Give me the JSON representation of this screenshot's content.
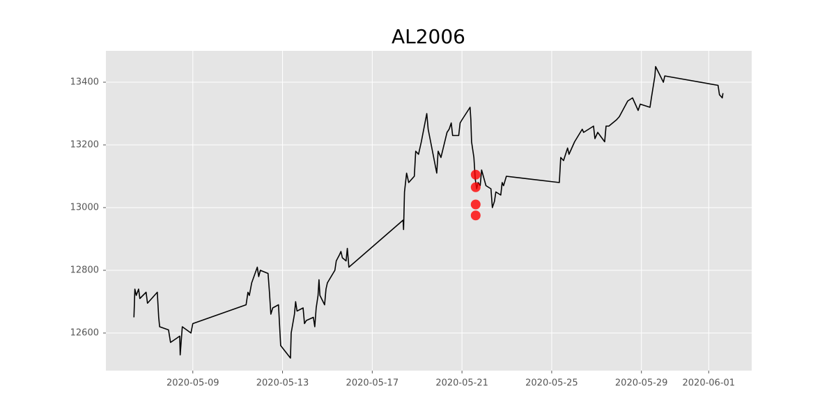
{
  "chart_data": {
    "type": "line",
    "title": "AL2006",
    "xlim": [
      "2020-05-05 03:00",
      "2020-06-02 22:00"
    ],
    "xticks": [
      "2020-05-09",
      "2020-05-13",
      "2020-05-17",
      "2020-05-21",
      "2020-05-25",
      "2020-05-29",
      "2020-06-01"
    ],
    "ylim": [
      12480,
      13500
    ],
    "yticks": [
      12600,
      12800,
      13000,
      13200,
      13400
    ],
    "grid": true,
    "series": [
      {
        "type": "line",
        "color": "#000000",
        "x": [
          "2020-05-06 09:00",
          "2020-05-06 10:00",
          "2020-05-06 11:30",
          "2020-05-06 14:00",
          "2020-05-06 15:20",
          "2020-05-06 22:00",
          "2020-05-06 23:30",
          "2020-05-07 10:00",
          "2020-05-07 11:30",
          "2020-05-07 12:30",
          "2020-05-07 22:00",
          "2020-05-08 00:10",
          "2020-05-08 10:00",
          "2020-05-08 10:30",
          "2020-05-08 12:45",
          "2020-05-08 22:00",
          "2020-05-09 00:00",
          "2020-05-11 09:00",
          "2020-05-11 11:00",
          "2020-05-11 12:30",
          "2020-05-11 15:00",
          "2020-05-11 21:00",
          "2020-05-11 22:30",
          "2020-05-12 00:15",
          "2020-05-12 08:30",
          "2020-05-12 10:00",
          "2020-05-12 11:30",
          "2020-05-12 13:30",
          "2020-05-12 19:40",
          "2020-05-12 22:00",
          "2020-05-13 08:30",
          "2020-05-13 09:15",
          "2020-05-13 12:45",
          "2020-05-13 14:00",
          "2020-05-13 15:30",
          "2020-05-13 22:00",
          "2020-05-13 23:30",
          "2020-05-14 01:30",
          "2020-05-14 09:00",
          "2020-05-14 10:30",
          "2020-05-14 12:00",
          "2020-05-14 14:00",
          "2020-05-14 15:00",
          "2020-05-14 16:00",
          "2020-05-14 21:00",
          "2020-05-14 22:30",
          "2020-05-15 00:00",
          "2020-05-15 08:00",
          "2020-05-15 09:30",
          "2020-05-15 13:00",
          "2020-05-15 14:30",
          "2020-05-15 16:00",
          "2020-05-15 20:00",
          "2020-05-15 21:20",
          "2020-05-15 23:00",
          "2020-05-18 09:00",
          "2020-05-18 09:30",
          "2020-05-18 10:30",
          "2020-05-18 12:45",
          "2020-05-18 15:00",
          "2020-05-18 21:00",
          "2020-05-18 22:30",
          "2020-05-19 01:30",
          "2020-05-19 04:30",
          "2020-05-19 10:20",
          "2020-05-19 11:50",
          "2020-05-19 21:00",
          "2020-05-19 22:30",
          "2020-05-20 01:30",
          "2020-05-20 08:00",
          "2020-05-20 10:15",
          "2020-05-20 12:30",
          "2020-05-20 14:00",
          "2020-05-20 20:30",
          "2020-05-20 22:00",
          "2020-05-21 00:00",
          "2020-05-21 08:40",
          "2020-05-21 09:30",
          "2020-05-21 10:15",
          "2020-05-21 12:45",
          "2020-05-21 14:15",
          "2020-05-21 15:45",
          "2020-05-21 17:15",
          "2020-05-21 19:30",
          "2020-05-21 21:00",
          "2020-05-22 01:40",
          "2020-05-22 07:00",
          "2020-05-22 08:30",
          "2020-05-22 10:45",
          "2020-05-22 12:15",
          "2020-05-22 17:30",
          "2020-05-22 19:00",
          "2020-05-22 20:30",
          "2020-05-22 23:30",
          "2020-05-25 08:10",
          "2020-05-25 09:40",
          "2020-05-25 12:40",
          "2020-05-25 17:00",
          "2020-05-25 18:30",
          "2020-05-26 00:30",
          "2020-05-26 08:40",
          "2020-05-26 10:10",
          "2020-05-26 15:30",
          "2020-05-26 20:45",
          "2020-05-26 22:15",
          "2020-05-27 01:15",
          "2020-05-27 08:40",
          "2020-05-27 10:10",
          "2020-05-27 13:10",
          "2020-05-27 21:20",
          "2020-05-28 00:20",
          "2020-05-28 09:20",
          "2020-05-28 14:30",
          "2020-05-28 20:30",
          "2020-05-28 22:45",
          "2020-05-29 09:10",
          "2020-05-29 10:40",
          "2020-05-29 14:25",
          "2020-05-29 15:10",
          "2020-05-29 23:30",
          "2020-05-30 01:00",
          "2020-06-01 10:00",
          "2020-06-01 11:30",
          "2020-06-01 14:30",
          "2020-06-01 15:15"
        ],
        "values": [
          12650,
          12740,
          12720,
          12740,
          12710,
          12730,
          12695,
          12730,
          12650,
          12620,
          12610,
          12570,
          12590,
          12530,
          12620,
          12600,
          12630,
          12690,
          12730,
          12720,
          12760,
          12810,
          12780,
          12800,
          12790,
          12730,
          12660,
          12680,
          12690,
          12560,
          12520,
          12600,
          12660,
          12700,
          12670,
          12680,
          12630,
          12640,
          12650,
          12620,
          12680,
          12720,
          12770,
          12720,
          12690,
          12740,
          12760,
          12800,
          12830,
          12850,
          12860,
          12840,
          12830,
          12870,
          12810,
          12960,
          12930,
          13050,
          13110,
          13080,
          13100,
          13180,
          13170,
          13210,
          13300,
          13250,
          13110,
          13180,
          13160,
          13240,
          13250,
          13270,
          13230,
          13230,
          13270,
          13280,
          13320,
          13280,
          13210,
          13160,
          13090,
          13060,
          13080,
          13070,
          13120,
          13070,
          13060,
          13000,
          13020,
          13050,
          13040,
          13080,
          13070,
          13100,
          13080,
          13160,
          13150,
          13190,
          13170,
          13210,
          13250,
          13240,
          13250,
          13260,
          13220,
          13240,
          13210,
          13260,
          13260,
          13280,
          13290,
          13340,
          13350,
          13310,
          13330,
          13320,
          13350,
          13420,
          13450,
          13400,
          13420,
          13390,
          13360,
          13350,
          13365
        ]
      },
      {
        "type": "scatter",
        "color": "#ff0000",
        "x": [
          "2020-05-21 14:40",
          "2020-05-21 14:40",
          "2020-05-21 14:40",
          "2020-05-21 14:40"
        ],
        "values": [
          13105,
          13065,
          13010,
          12975
        ]
      }
    ]
  }
}
